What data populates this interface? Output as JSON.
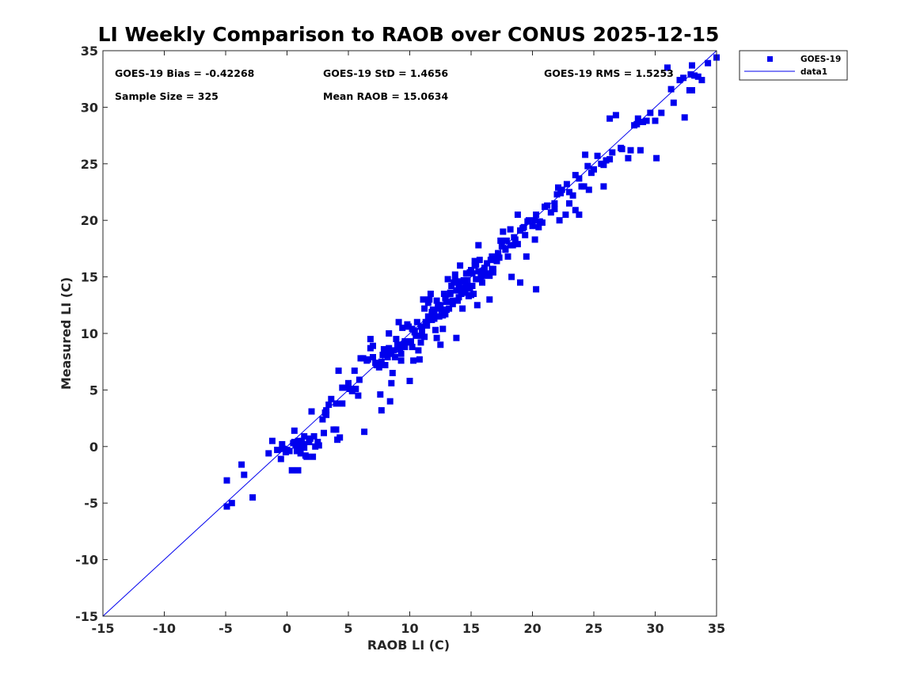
{
  "chart_data": {
    "type": "scatter",
    "title": "LI Weekly Comparison to RAOB over CONUS 2025-12-15",
    "xlabel": "RAOB LI (C)",
    "ylabel": "Measured LI (C)",
    "xlim": [
      -15,
      35
    ],
    "ylim": [
      -15,
      35
    ],
    "xticks": [
      -15,
      -10,
      -5,
      0,
      5,
      10,
      15,
      20,
      25,
      30,
      35
    ],
    "yticks": [
      -15,
      -10,
      -5,
      0,
      5,
      10,
      15,
      20,
      25,
      30,
      35
    ],
    "grid": false,
    "legend_position": "top-right outside",
    "colors": {
      "series": "#0000ee",
      "line": "#0000ee",
      "axis": "#262626"
    },
    "stats": {
      "bias": "GOES-19 Bias = -0.42268",
      "std": "GOES-19 StD = 1.4656",
      "rms": "GOES-19 RMS = 1.5253",
      "sample": "Sample Size = 325",
      "mean": "Mean RAOB = 15.0634"
    },
    "series": [
      {
        "name": "GOES-19",
        "marker": "square",
        "x": [
          -4.9,
          -4.9,
          -4.5,
          -3.7,
          -3.5,
          -2.8,
          -1.5,
          -1.2,
          -0.8,
          -0.5,
          -0.4,
          -0.3,
          -0.1,
          0.0,
          0.2,
          0.4,
          0.5,
          0.6,
          0.7,
          0.8,
          0.9,
          0.9,
          1.0,
          1.0,
          1.1,
          1.2,
          1.3,
          1.4,
          1.5,
          1.6,
          1.8,
          1.9,
          2.0,
          2.1,
          2.3,
          2.6,
          2.9,
          3.0,
          3.1,
          3.2,
          3.4,
          3.6,
          3.8,
          4.0,
          4.1,
          4.2,
          4.3,
          4.5,
          5.0,
          5.0,
          5.5,
          5.6,
          5.8,
          5.9,
          6.2,
          6.3,
          6.6,
          6.8,
          7.0,
          7.3,
          7.5,
          7.6,
          7.7,
          7.8,
          8.0,
          8.1,
          8.3,
          8.4,
          8.5,
          8.6,
          8.7,
          8.8,
          8.9,
          9.0,
          9.1,
          9.2,
          9.3,
          9.4,
          9.5,
          9.6,
          9.8,
          9.9,
          10.0,
          10.1,
          10.2,
          10.3,
          10.4,
          10.5,
          10.6,
          10.7,
          10.8,
          10.9,
          11.0,
          11.1,
          11.2,
          11.3,
          11.4,
          11.5,
          11.6,
          11.7,
          11.8,
          11.9,
          12.0,
          12.1,
          12.2,
          12.3,
          12.4,
          12.5,
          12.6,
          12.7,
          12.8,
          12.9,
          13.0,
          13.1,
          13.2,
          13.3,
          13.4,
          13.5,
          13.6,
          13.7,
          13.8,
          13.9,
          14.0,
          14.1,
          14.2,
          14.3,
          14.4,
          14.5,
          14.6,
          14.7,
          14.8,
          14.9,
          15.0,
          15.1,
          15.2,
          15.3,
          15.4,
          15.5,
          15.6,
          15.7,
          15.8,
          15.9,
          16.0,
          16.1,
          16.3,
          16.5,
          16.7,
          16.8,
          17.0,
          17.2,
          17.4,
          17.6,
          17.8,
          18.0,
          18.2,
          18.3,
          18.5,
          18.8,
          19.0,
          19.2,
          19.5,
          19.7,
          20.0,
          20.2,
          20.3,
          20.8,
          21.2,
          21.5,
          21.8,
          22.0,
          22.2,
          22.4,
          22.7,
          23.0,
          23.3,
          23.5,
          23.8,
          24.0,
          24.3,
          24.6,
          25.0,
          25.3,
          25.8,
          26.0,
          26.3,
          26.5,
          26.8,
          27.3,
          27.8,
          28.0,
          28.3,
          28.6,
          29.0,
          29.6,
          30.0,
          30.1,
          31.0,
          31.5,
          32.0,
          32.4,
          32.8,
          33.0,
          33.2,
          33.5,
          33.8,
          34.3,
          35.0,
          7.3,
          7.7,
          8.0,
          8.3,
          9.3,
          10.2,
          12.2,
          13.8,
          14.2,
          15.0,
          15.3,
          16.3,
          16.8,
          17.5,
          18.2,
          19.3,
          20.2,
          22.3,
          23.5,
          24.5,
          25.8,
          26.3,
          28.5,
          29.3,
          31.3,
          32.3,
          33.0,
          3.2,
          4.0,
          4.5,
          5.3,
          6.0,
          6.5,
          6.8,
          7.2,
          7.9,
          8.5,
          9.0,
          9.7,
          10.4,
          11.0,
          11.5,
          12.0,
          12.5,
          13.0,
          13.5,
          14.0,
          14.6,
          15.1,
          15.6,
          16.2,
          16.7,
          17.3,
          17.8,
          18.4,
          19.0,
          19.6,
          20.3,
          21.0,
          22.1,
          22.8,
          23.8,
          24.8,
          2.5,
          5.1,
          9.2,
          10.9,
          12.7,
          14.1,
          14.7,
          15.8,
          16.5,
          17.1,
          18.8,
          20.5,
          21.8,
          23.0,
          24.2,
          25.6,
          27.2,
          28.8,
          30.5,
          32.9,
          0.6,
          1.4,
          2.2,
          4.9,
          7.0,
          8.2,
          9.6,
          11.2,
          11.8,
          12.3,
          12.9,
          13.3,
          13.7,
          14.4,
          14.9,
          15.4,
          16.0,
          16.6,
          17.2,
          17.9,
          18.6,
          19.4,
          20.6
        ],
        "y": [
          -3.0,
          -5.3,
          -5.0,
          -1.6,
          -2.5,
          -4.5,
          -0.6,
          0.5,
          -0.3,
          -1.1,
          0.2,
          -0.2,
          -0.5,
          -0.3,
          -0.4,
          -2.1,
          0.3,
          1.4,
          0.1,
          -0.4,
          -2.1,
          0.5,
          -0.2,
          0.3,
          -0.6,
          0.4,
          0.2,
          -0.1,
          -0.8,
          -0.9,
          0.4,
          0.7,
          3.1,
          -0.9,
          0.0,
          0.1,
          2.4,
          1.2,
          3.0,
          3.2,
          3.7,
          4.2,
          1.5,
          3.8,
          0.6,
          6.7,
          0.8,
          5.2,
          5.6,
          5.4,
          6.7,
          5.1,
          4.5,
          5.9,
          7.8,
          1.3,
          7.7,
          9.5,
          8.9,
          7.2,
          7.0,
          4.6,
          3.2,
          8.1,
          7.2,
          8.4,
          10.0,
          4.0,
          5.6,
          6.5,
          8.5,
          7.9,
          9.5,
          9.0,
          11.0,
          8.9,
          7.6,
          10.5,
          9.0,
          8.8,
          10.8,
          10.6,
          5.8,
          9.3,
          10.4,
          7.6,
          10.2,
          9.8,
          11.0,
          8.5,
          7.7,
          10.6,
          9.8,
          13.0,
          9.7,
          11.0,
          10.7,
          12.7,
          13.0,
          13.5,
          11.2,
          12.1,
          11.7,
          10.3,
          12.9,
          12.2,
          11.5,
          9.0,
          12.0,
          10.4,
          13.5,
          11.7,
          12.8,
          14.8,
          12.2,
          13.5,
          14.2,
          12.6,
          14.5,
          15.2,
          13.8,
          12.9,
          14.3,
          16.0,
          13.5,
          12.2,
          14.0,
          13.6,
          15.3,
          14.7,
          13.3,
          14.0,
          15.6,
          14.2,
          13.5,
          16.0,
          14.8,
          12.5,
          17.8,
          16.5,
          15.0,
          14.5,
          15.5,
          15.8,
          16.2,
          13.0,
          16.8,
          15.7,
          16.5,
          17.0,
          18.2,
          19.0,
          17.5,
          16.8,
          17.8,
          15.0,
          18.5,
          20.5,
          14.5,
          19.3,
          16.8,
          20.0,
          19.5,
          18.3,
          13.9,
          19.8,
          21.3,
          20.7,
          21.0,
          22.3,
          20.0,
          22.7,
          20.5,
          21.5,
          22.2,
          24.0,
          20.5,
          23.0,
          25.8,
          22.7,
          24.5,
          25.7,
          23.0,
          25.3,
          29.0,
          26.0,
          29.3,
          26.3,
          25.5,
          26.2,
          28.4,
          29.0,
          28.7,
          29.5,
          28.8,
          25.5,
          33.5,
          30.4,
          32.4,
          29.1,
          31.5,
          33.7,
          32.8,
          32.7,
          32.4,
          33.9,
          34.4,
          7.3,
          7.5,
          8.3,
          8.7,
          8.2,
          8.8,
          9.6,
          9.6,
          13.8,
          13.4,
          16.4,
          15.2,
          15.4,
          17.7,
          19.2,
          19.4,
          20.0,
          22.4,
          20.9,
          24.8,
          24.9,
          25.4,
          28.5,
          28.8,
          31.6,
          32.6,
          31.5,
          2.8,
          1.5,
          3.8,
          4.9,
          7.8,
          7.6,
          8.7,
          7.4,
          8.6,
          8.2,
          8.8,
          9.2,
          10.1,
          10.3,
          11.5,
          11.3,
          12.5,
          12.1,
          12.9,
          13.2,
          14.4,
          15.3,
          15.5,
          15.3,
          15.7,
          16.7,
          17.4,
          17.8,
          19.1,
          19.9,
          20.5,
          21.2,
          22.9,
          23.2,
          23.7,
          24.2,
          0.4,
          5.1,
          8.6,
          9.2,
          11.6,
          14.6,
          14.7,
          15.5,
          15.1,
          16.4,
          17.9,
          19.4,
          21.5,
          22.5,
          23.0,
          25.0,
          26.4,
          26.2,
          29.5,
          32.9,
          0.4,
          0.9,
          0.9,
          5.2,
          7.9,
          7.9,
          9.3,
          12.2,
          11.9,
          12.5,
          13.1,
          13.6,
          14.7,
          14.7,
          15.4,
          16.1,
          15.1,
          16.5,
          17.1,
          18.2,
          18.3,
          18.7,
          19.9
        ]
      },
      {
        "name": "data1",
        "type": "line",
        "x": [
          -15,
          35
        ],
        "y": [
          -15,
          35
        ]
      }
    ]
  }
}
